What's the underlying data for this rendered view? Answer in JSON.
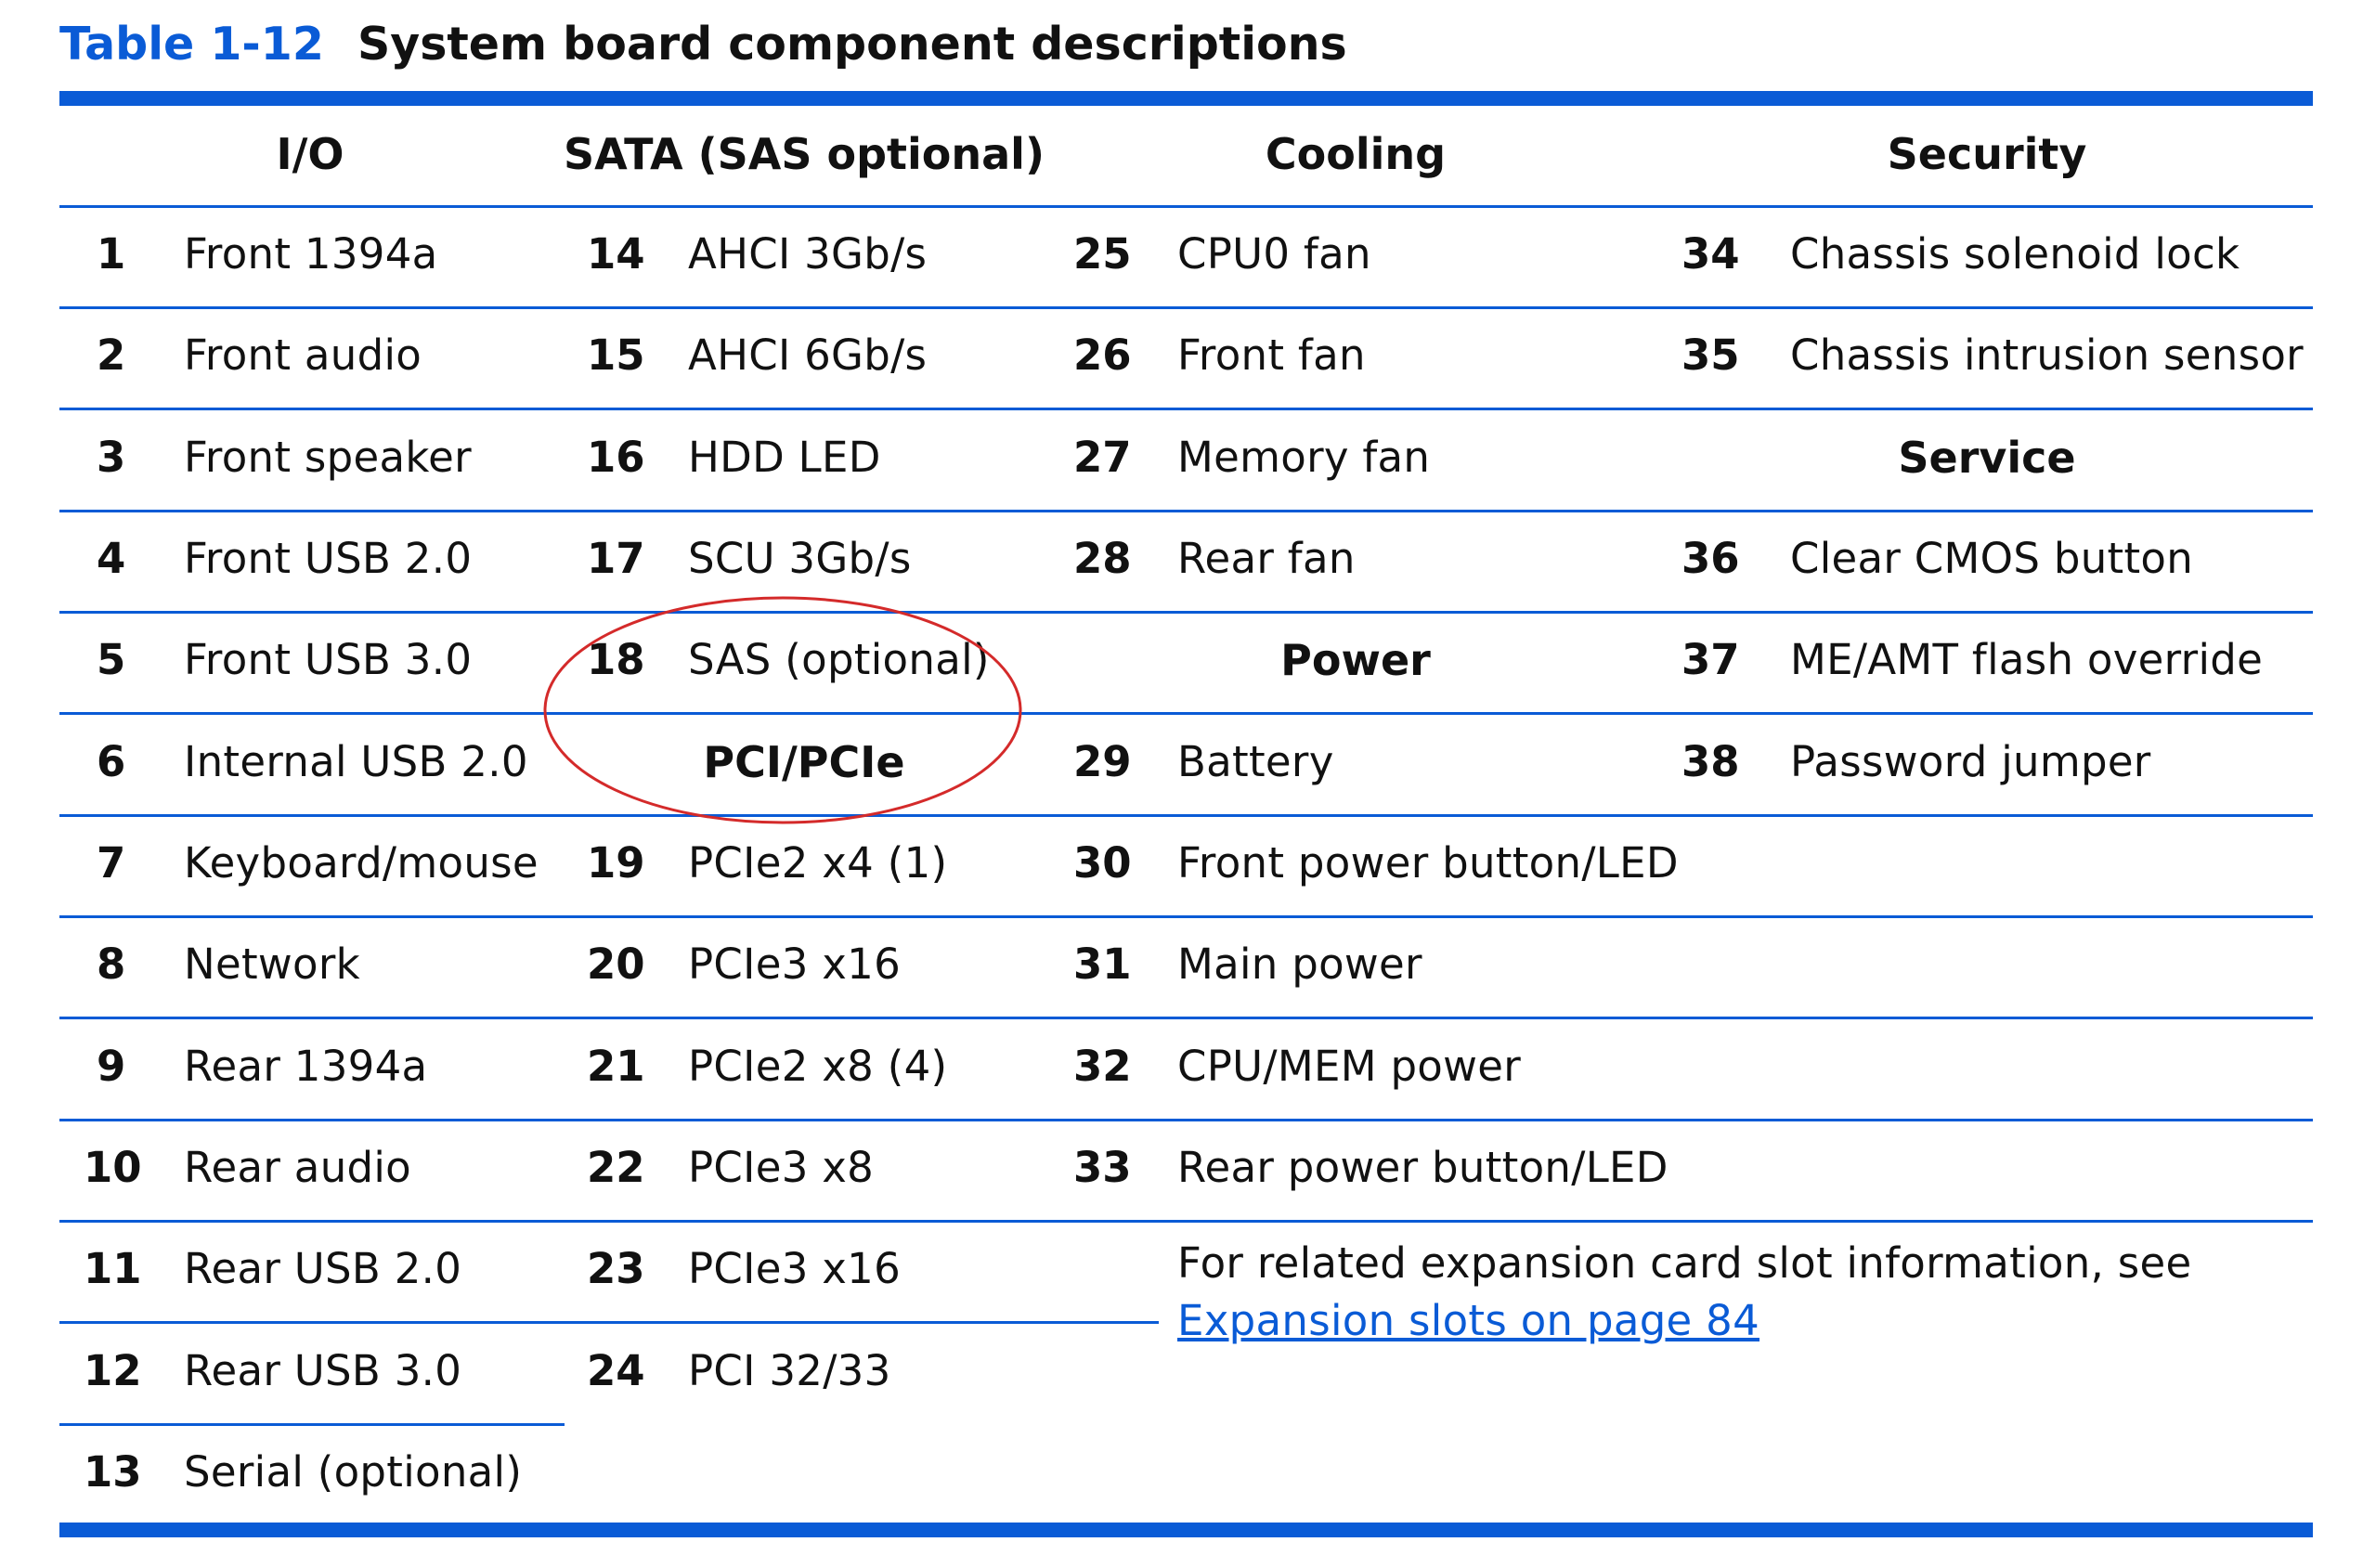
{
  "caption": {
    "number": "Table 1-12",
    "title": "System board component descriptions"
  },
  "headers": {
    "io": "I/O",
    "sata": "SATA (SAS optional)",
    "cooling": "Cooling",
    "security": "Security",
    "service": "Service",
    "power": "Power",
    "pci": "PCI/PCIe"
  },
  "io": [
    {
      "num": "1",
      "label": "Front 1394a"
    },
    {
      "num": "2",
      "label": "Front audio"
    },
    {
      "num": "3",
      "label": "Front speaker"
    },
    {
      "num": "4",
      "label": "Front USB 2.0"
    },
    {
      "num": "5",
      "label": "Front USB 3.0"
    },
    {
      "num": "6",
      "label": "Internal USB 2.0"
    },
    {
      "num": "7",
      "label": "Keyboard/mouse"
    },
    {
      "num": "8",
      "label": "Network"
    },
    {
      "num": "9",
      "label": "Rear 1394a"
    },
    {
      "num": "10",
      "label": "Rear audio"
    },
    {
      "num": "11",
      "label": "Rear USB 2.0"
    },
    {
      "num": "12",
      "label": "Rear USB 3.0"
    },
    {
      "num": "13",
      "label": "Serial (optional)"
    }
  ],
  "sata": [
    {
      "num": "14",
      "label": "AHCI 3Gb/s"
    },
    {
      "num": "15",
      "label": "AHCI 6Gb/s"
    },
    {
      "num": "16",
      "label": "HDD LED"
    },
    {
      "num": "17",
      "label": "SCU 3Gb/s"
    },
    {
      "num": "18",
      "label": "SAS (optional)"
    }
  ],
  "pci": [
    {
      "num": "19",
      "label": "PCIe2 x4 (1)"
    },
    {
      "num": "20",
      "label": "PCIe3 x16"
    },
    {
      "num": "21",
      "label": "PCIe2 x8 (4)"
    },
    {
      "num": "22",
      "label": "PCIe3 x8"
    },
    {
      "num": "23",
      "label": "PCIe3 x16"
    },
    {
      "num": "24",
      "label": "PCI 32/33"
    }
  ],
  "cooling": [
    {
      "num": "25",
      "label": "CPU0 fan"
    },
    {
      "num": "26",
      "label": "Front fan"
    },
    {
      "num": "27",
      "label": "Memory fan"
    },
    {
      "num": "28",
      "label": "Rear fan"
    }
  ],
  "power": [
    {
      "num": "29",
      "label": "Battery"
    },
    {
      "num": "30",
      "label": "Front power button/LED"
    },
    {
      "num": "31",
      "label": "Main power"
    },
    {
      "num": "32",
      "label": "CPU/MEM power"
    },
    {
      "num": "33",
      "label": "Rear power button/LED"
    }
  ],
  "security": [
    {
      "num": "34",
      "label": "Chassis solenoid lock"
    },
    {
      "num": "35",
      "label": "Chassis intrusion sensor"
    }
  ],
  "service": [
    {
      "num": "36",
      "label": "Clear CMOS button"
    },
    {
      "num": "37",
      "label": "ME/AMT flash override"
    },
    {
      "num": "38",
      "label": "Password jumper"
    }
  ],
  "note": {
    "text": "For related expansion card slot information, see ",
    "link": "Expansion slots on page 84"
  },
  "colors": {
    "accent": "#0a5bd6",
    "annotation": "#d42a2a"
  }
}
